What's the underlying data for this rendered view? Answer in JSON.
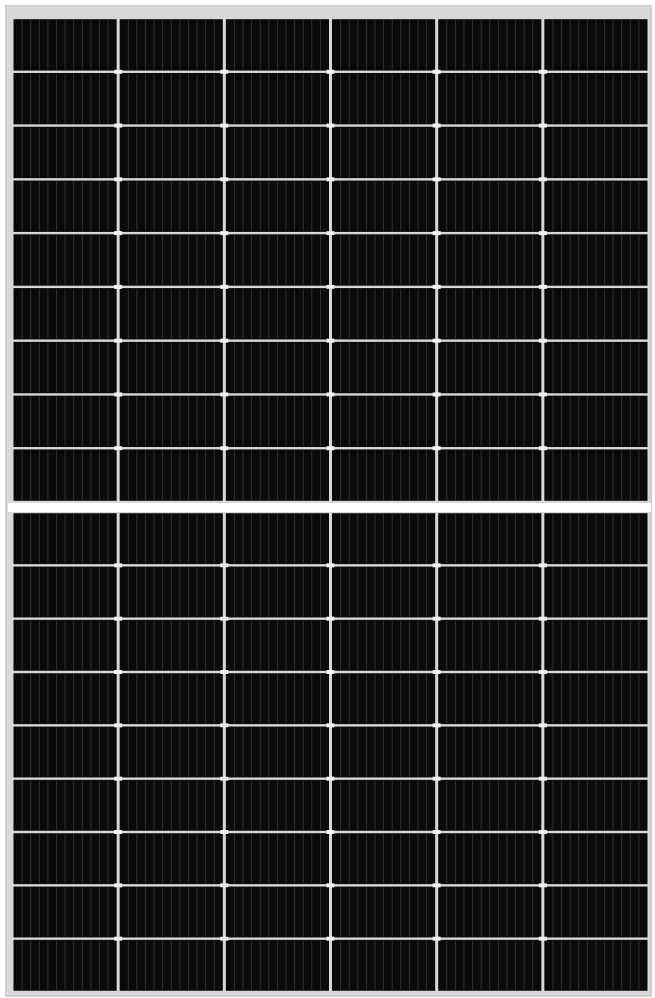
{
  "subject": "solar-panel",
  "panel": {
    "halves": 2,
    "cell_columns": 6,
    "cell_rows_per_half": 9,
    "cell_type": "half-cut-monocrystalline",
    "colors": {
      "background": "#ffffff",
      "frame": "#cfcfcf",
      "cell": "#0a0a0a",
      "cell_gap": "#d8d8d8",
      "finger_line": "#3a3a3a",
      "busbar_joint": "#f2f2f2",
      "center_divider": "#ffffff"
    }
  }
}
